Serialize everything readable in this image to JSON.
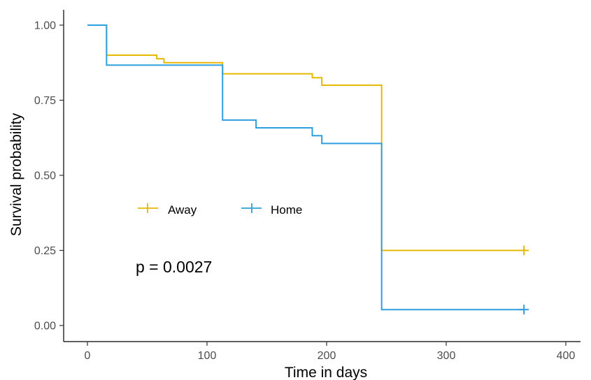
{
  "chart_data": {
    "type": "line",
    "title": "",
    "xlabel": "Time in days",
    "ylabel": "Survival probability",
    "xlim": [
      0,
      400
    ],
    "ylim": [
      0,
      1
    ],
    "x_ticks": [
      "0",
      "100",
      "200",
      "300",
      "400"
    ],
    "y_ticks": [
      "0.00",
      "0.25",
      "0.50",
      "0.75",
      "1.00"
    ],
    "grid": false,
    "legend_position": "inside-left",
    "annotation": "p = 0.0027",
    "series": [
      {
        "name": "Away",
        "color": "#E7B800",
        "step": true,
        "x": [
          0,
          16,
          58,
          64,
          113,
          188,
          196,
          246,
          365
        ],
        "y": [
          1.0,
          0.9,
          0.888,
          0.875,
          0.838,
          0.825,
          0.8,
          0.25,
          0.25
        ],
        "censor_x": [
          365
        ],
        "censor_y": [
          0.25
        ]
      },
      {
        "name": "Home",
        "color": "#2E9FDF",
        "step": true,
        "x": [
          0,
          16,
          113,
          141,
          188,
          196,
          246,
          365
        ],
        "y": [
          1.0,
          0.867,
          0.684,
          0.658,
          0.632,
          0.606,
          0.053,
          0.053
        ],
        "censor_x": [
          365
        ],
        "censor_y": [
          0.053
        ]
      }
    ]
  }
}
